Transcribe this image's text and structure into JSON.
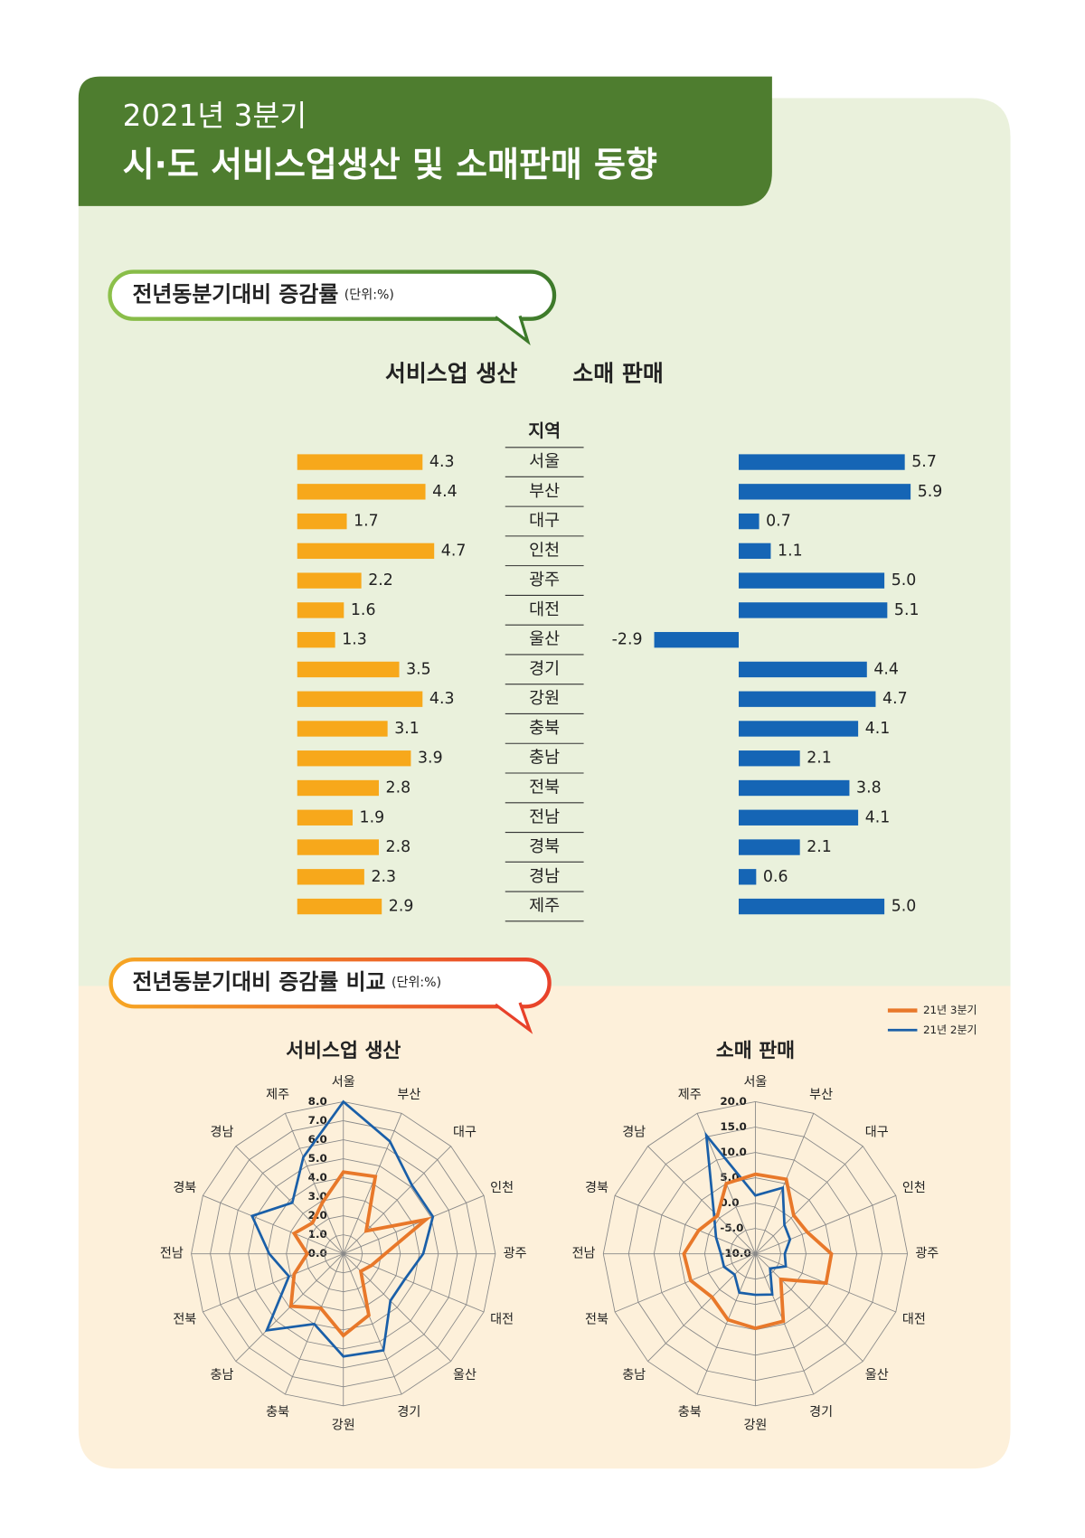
{
  "header": {
    "line1": "2021년 3분기",
    "line2": "시·도 서비스업생산 및 소매판매 동향"
  },
  "sections": [
    {
      "title": "전년동분기대비 증감률",
      "unit": "(단위:%)"
    },
    {
      "title": "전년동분기대비 증감률 비교",
      "unit": "(단위:%)"
    }
  ],
  "chart_data": [
    {
      "type": "bar",
      "category_label": "지역",
      "categories": [
        "서울",
        "부산",
        "대구",
        "인천",
        "광주",
        "대전",
        "울산",
        "경기",
        "강원",
        "충북",
        "충남",
        "전북",
        "전남",
        "경북",
        "경남",
        "제주"
      ],
      "series": [
        {
          "name": "서비스업 생산",
          "color": "#f7a81b",
          "values": [
            4.3,
            4.4,
            1.7,
            4.7,
            2.2,
            1.6,
            1.3,
            3.5,
            4.3,
            3.1,
            3.9,
            2.8,
            1.9,
            2.8,
            2.3,
            2.9
          ],
          "value_labels": [
            "4.3",
            "4.4",
            "1.7",
            "4.7",
            "2.2",
            "1.6",
            "1.3",
            "3.5",
            "4.3",
            "3.1",
            "3.9",
            "2.8",
            "1.9",
            "2.8",
            "2.3",
            "2.9"
          ]
        },
        {
          "name": "소매 판매",
          "color": "#1565b5",
          "values": [
            5.7,
            5.9,
            0.7,
            1.1,
            5.0,
            5.1,
            -2.9,
            4.4,
            4.7,
            4.1,
            2.1,
            3.8,
            4.1,
            2.1,
            0.6,
            5.0
          ],
          "value_labels": [
            "5.7",
            "5.9",
            "0.7",
            "1.1",
            "5.0",
            "5.1",
            "-2.9",
            "4.4",
            "4.7",
            "4.1",
            "2.1",
            "3.8",
            "4.1",
            "2.1",
            "0.6",
            "5.0"
          ]
        }
      ]
    },
    {
      "type": "radar",
      "title": "서비스업 생산",
      "categories": [
        "서울",
        "부산",
        "대구",
        "인천",
        "광주",
        "대전",
        "울산",
        "경기",
        "강원",
        "충북",
        "충남",
        "전북",
        "전남",
        "경북",
        "경남",
        "제주"
      ],
      "ylim": [
        0,
        8
      ],
      "yticks": [
        {
          "value": 0,
          "label": "0.0"
        },
        {
          "value": 1,
          "label": "1.0"
        },
        {
          "value": 2,
          "label": "2.0"
        },
        {
          "value": 3,
          "label": "3.0"
        },
        {
          "value": 4,
          "label": "4.0"
        },
        {
          "value": 5,
          "label": "5.0"
        },
        {
          "value": 6,
          "label": "6.0"
        },
        {
          "value": 7,
          "label": "7.0"
        },
        {
          "value": 8,
          "label": "8.0"
        }
      ],
      "series": [
        {
          "color": "#e8782a",
          "values": [
            4.3,
            4.4,
            1.7,
            4.7,
            2.2,
            1.6,
            1.3,
            3.5,
            4.3,
            3.1,
            3.9,
            2.8,
            1.9,
            2.8,
            2.3,
            2.9
          ]
        },
        {
          "color": "#1a5fa8",
          "values": [
            8.0,
            6.4,
            5.1,
            5.1,
            4.2,
            3.5,
            3.5,
            5.5,
            5.4,
            4.0,
            5.7,
            3.1,
            3.9,
            5.2,
            3.8,
            5.5
          ]
        }
      ]
    },
    {
      "type": "radar",
      "title": "소매 판매",
      "categories": [
        "서울",
        "부산",
        "대구",
        "인천",
        "광주",
        "대전",
        "울산",
        "경기",
        "강원",
        "충북",
        "충남",
        "전북",
        "전남",
        "경북",
        "경남",
        "제주"
      ],
      "ylim": [
        -10,
        20
      ],
      "yticks": [
        {
          "value": -10,
          "label": "-10.0"
        },
        {
          "value": -5,
          "label": "-5.0"
        },
        {
          "value": 0,
          "label": "0.0"
        },
        {
          "value": 5,
          "label": "5.0"
        },
        {
          "value": 10,
          "label": "10.0"
        },
        {
          "value": 15,
          "label": "15.0"
        },
        {
          "value": 20,
          "label": "20.0"
        }
      ],
      "series": [
        {
          "name": "21년 3분기",
          "color": "#e8782a",
          "values": [
            5.7,
            5.9,
            0.7,
            1.1,
            5.0,
            5.1,
            -2.9,
            4.4,
            4.7,
            4.1,
            2.1,
            3.8,
            4.1,
            2.1,
            0.6,
            5.0
          ]
        },
        {
          "name": "21년 2분기",
          "color": "#1a5fa8",
          "values": [
            1.5,
            4.1,
            -1.9,
            -2.6,
            -4.2,
            -3.5,
            -5.9,
            -1.3,
            -1.9,
            -1.7,
            -4.2,
            -3.3,
            -3.2,
            -1.6,
            1.6,
            15.3
          ]
        }
      ]
    }
  ]
}
